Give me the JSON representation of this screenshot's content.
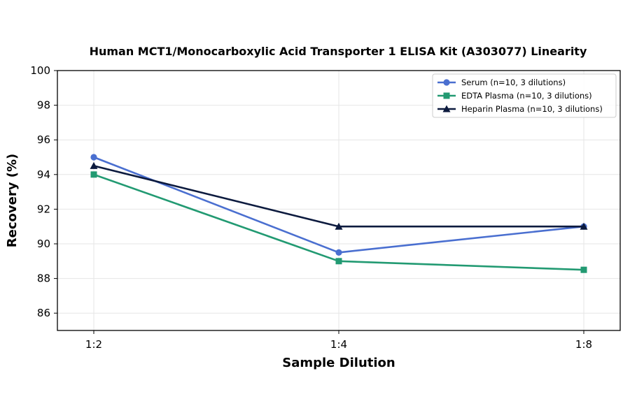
{
  "chart_data": {
    "type": "line",
    "title": "Human MCT1/Monocarboxylic Acid Transporter 1 ELISA Kit (A303077) Linearity",
    "xlabel": "Sample Dilution",
    "ylabel": "Recovery (%)",
    "categories": [
      "1:2",
      "1:4",
      "1:8"
    ],
    "ylim": [
      85,
      100
    ],
    "yticks": [
      86,
      88,
      90,
      92,
      94,
      96,
      98,
      100
    ],
    "grid": true,
    "legend_position": "top-right",
    "series": [
      {
        "name": "Serum (n=10, 3 dilutions)",
        "values": [
          95.0,
          89.5,
          91.0
        ],
        "color": "#4a6fd0",
        "marker": "circle"
      },
      {
        "name": "EDTA Plasma (n=10, 3 dilutions)",
        "values": [
          94.0,
          89.0,
          88.5
        ],
        "color": "#229a72",
        "marker": "square"
      },
      {
        "name": "Heparin Plasma (n=10, 3 dilutions)",
        "values": [
          94.5,
          91.0,
          91.0
        ],
        "color": "#0c1a3e",
        "marker": "triangle"
      }
    ]
  }
}
